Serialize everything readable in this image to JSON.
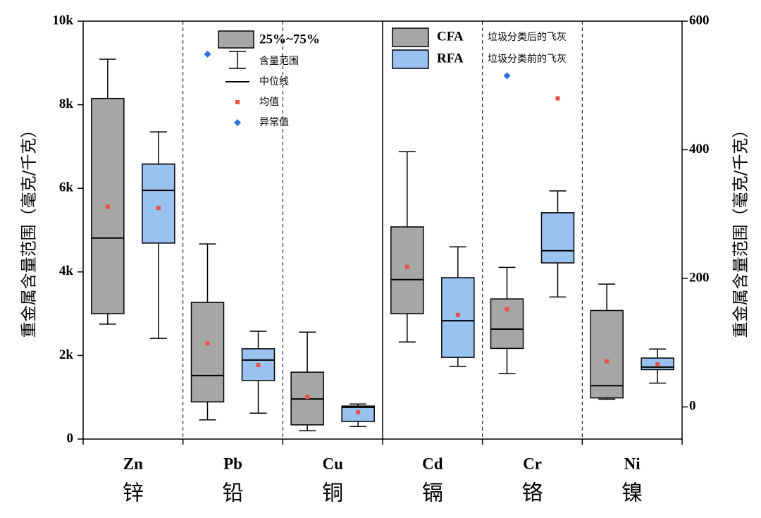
{
  "chart_data": {
    "type": "box",
    "ylabel": "重金属含量范围（毫克/千克）",
    "y2label": "重金属含量范围（毫克/千克）",
    "categories": [
      "Zn",
      "Pb",
      "Cu",
      "Cd",
      "Cr",
      "Ni"
    ],
    "categories_cn": [
      "锌",
      "铅",
      "铜",
      "镉",
      "铬",
      "镍"
    ],
    "category_axis": [
      "y",
      "y",
      "y",
      "y2",
      "y2",
      "y2"
    ],
    "ylim": [
      0,
      10000
    ],
    "yticks": [
      0,
      {
        "value": 2000,
        "label": "2k"
      },
      {
        "value": 4000,
        "label": "4k"
      },
      {
        "value": 6000,
        "label": "6k"
      },
      {
        "value": 8000,
        "label": "8k"
      },
      {
        "value": 10000,
        "label": "10k"
      }
    ],
    "y2lim": [
      -50,
      600
    ],
    "y2ticks": [
      0,
      200,
      400,
      600
    ],
    "series": [
      {
        "name": "CFA",
        "description": "垃圾分类后的飞灰",
        "color": "#a6a6a6",
        "min": [
          2750,
          460,
          200,
          101,
          52,
          12
        ],
        "q1": [
          3000,
          890,
          340,
          145,
          91,
          14
        ],
        "median": [
          4810,
          1520,
          960,
          198,
          121,
          33
        ],
        "q3": [
          8150,
          3270,
          1600,
          280,
          168,
          150
        ],
        "max": [
          9090,
          4670,
          2560,
          397,
          217,
          191
        ],
        "mean": [
          5560,
          2290,
          1010,
          218,
          152,
          71
        ],
        "outliers": [
          null,
          9210,
          null,
          null,
          515,
          null
        ]
      },
      {
        "name": "RFA",
        "description": "垃圾分类前的飞灰",
        "color": "#99c2f0",
        "min": [
          2410,
          620,
          300,
          63,
          171,
          37
        ],
        "q1": [
          4690,
          1400,
          420,
          77,
          224,
          58
        ],
        "median": [
          5950,
          1890,
          760,
          134,
          243,
          62
        ],
        "q3": [
          6580,
          2160,
          790,
          201,
          302,
          76
        ],
        "max": [
          7350,
          2580,
          840,
          249,
          336,
          90
        ],
        "mean": [
          5530,
          1770,
          640,
          143,
          480,
          66
        ],
        "outliers": [
          null,
          null,
          null,
          null,
          null,
          null
        ]
      }
    ],
    "legend": {
      "box": "25%~75%",
      "whisker": "含量范围",
      "median": "中位线",
      "mean": "均值",
      "outlier": "异常值"
    },
    "mean_color": "#e8504a",
    "outlier_color": "#2e6fd6"
  }
}
